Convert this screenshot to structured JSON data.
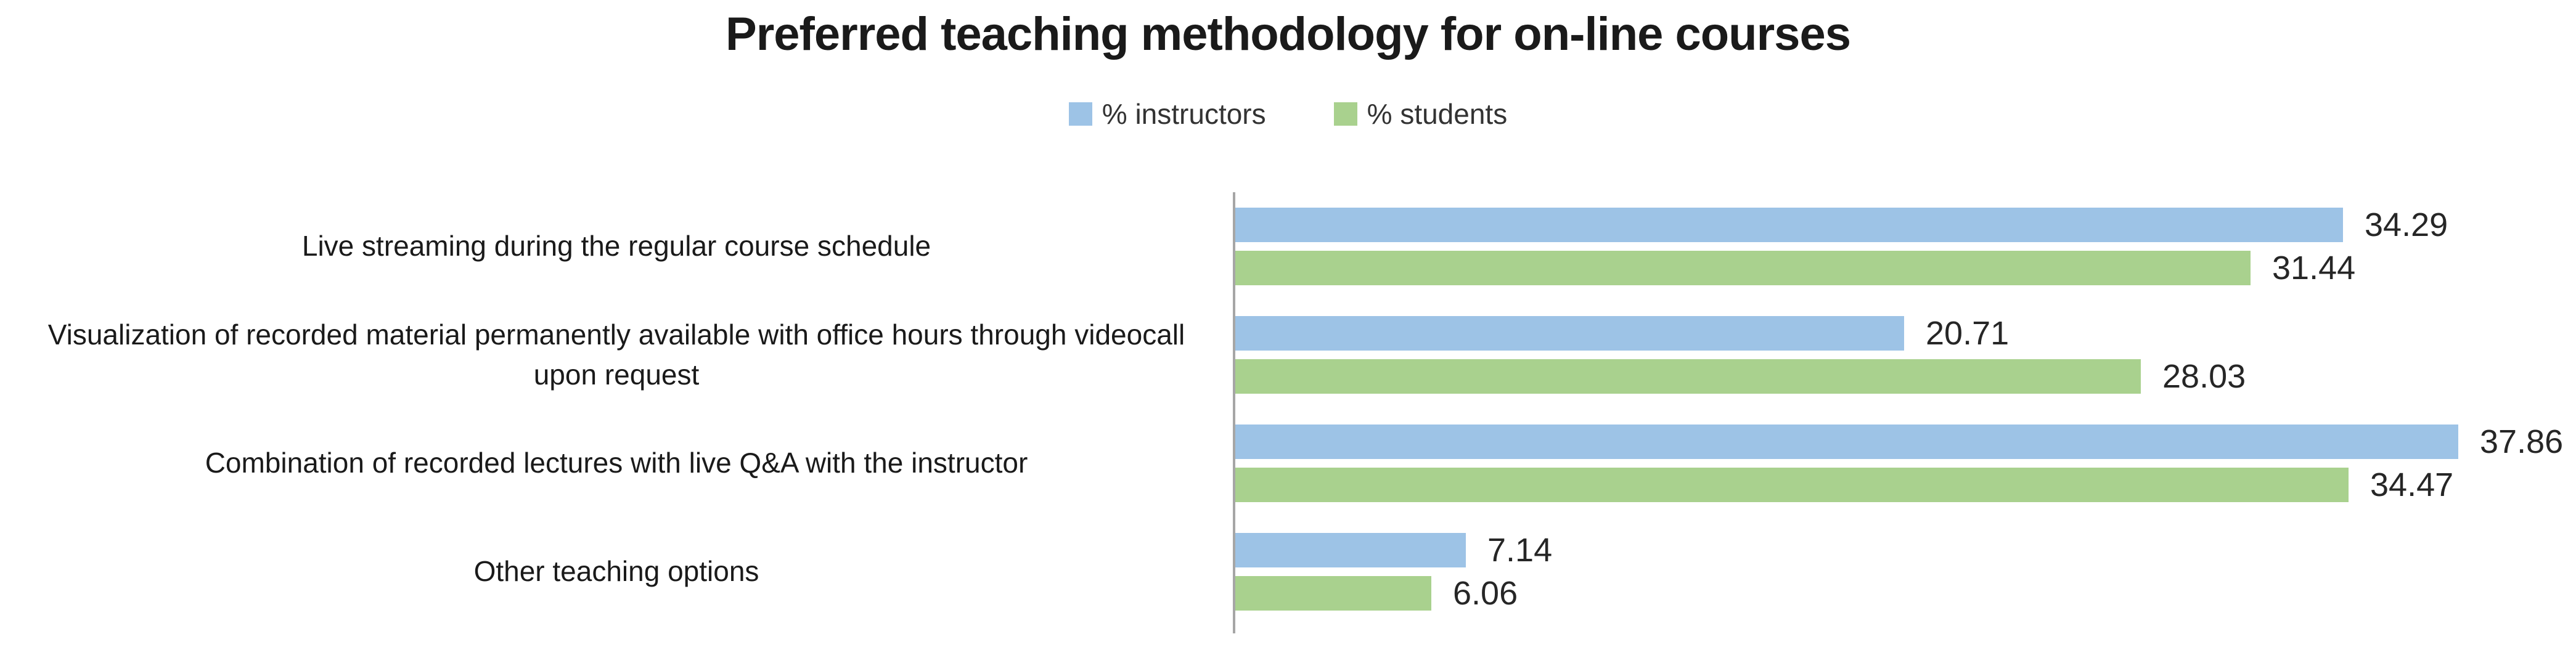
{
  "chart_data": {
    "type": "bar",
    "orientation": "horizontal",
    "title": "Preferred teaching methodology for on-line courses",
    "categories": [
      "Live streaming during the regular course schedule",
      "Visualization of recorded material permanently available with office hours through videocall upon request",
      "Combination of recorded lectures with live Q&A with the instructor",
      "Other teaching options"
    ],
    "series": [
      {
        "name": "% instructors",
        "color": "#9DC3E6",
        "values": [
          34.29,
          20.71,
          37.86,
          7.14
        ]
      },
      {
        "name": "% students",
        "color": "#A9D18E",
        "values": [
          31.44,
          28.03,
          34.47,
          6.06
        ]
      }
    ],
    "value_label_decimals": 2,
    "xlim": [
      0,
      40
    ],
    "gridlines": false,
    "legend_position": "top-center",
    "axis_line_color": "#A6A6A6",
    "value_label_color": "#262626",
    "title_color": "#1A1A1A",
    "category_label_color": "#1A1A1A"
  }
}
